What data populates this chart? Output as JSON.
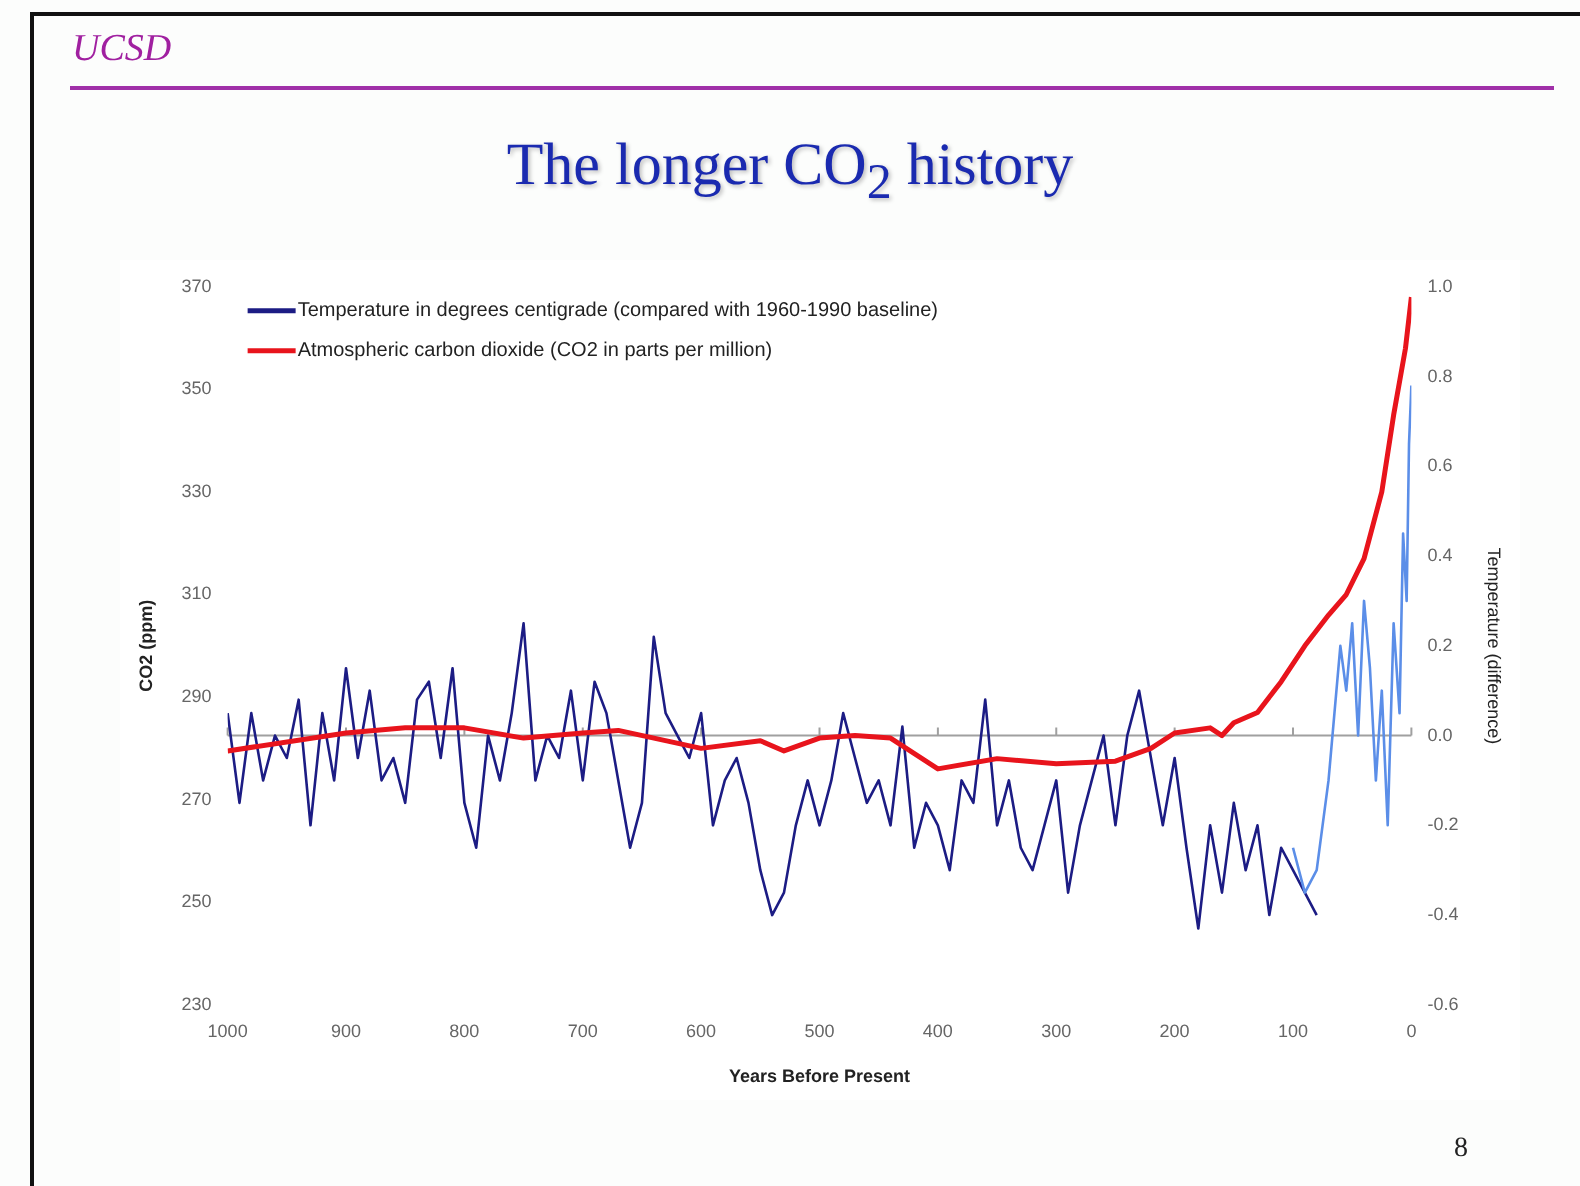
{
  "chart_data": {
    "type": "line",
    "title": "The longer CO$_{2}$ history",
    "xlabel": "Years Before Present",
    "ylabel": "CO2 (ppm)",
    "y2label": "Temperature (difference)",
    "annotations": [
      "UCSD",
      "8"
    ],
    "xlim": [
      1000,
      0
    ],
    "xticks": [
      1000,
      900,
      800,
      700,
      600,
      500,
      400,
      300,
      200,
      100,
      0
    ],
    "ylim": [
      230,
      370
    ],
    "yticks": [
      230,
      250,
      270,
      290,
      310,
      330,
      350,
      370
    ],
    "y2lim": [
      -0.6,
      1.0
    ],
    "y2ticks": [
      -0.6,
      -0.4,
      -0.2,
      {
        "value": 0,
        "label": "0.0"
      },
      0.2,
      0.4,
      0.6,
      0.8,
      {
        "value": 1,
        "label": "1.0"
      }
    ],
    "legend": "top left",
    "grid": false,
    "marker": "none",
    "line_style": "solid",
    "ref_lines": [
      {
        "axis": "y2",
        "value": 0,
        "color": "#a0a0a0"
      }
    ],
    "series": [
      {
        "name": "Temperature in degrees centigrade (compared with 1960-1990 baseline)",
        "color": "#1c1c84",
        "axis": "y2",
        "x": [
          1000,
          990,
          980,
          970,
          960,
          950,
          940,
          930,
          920,
          910,
          900,
          890,
          880,
          870,
          860,
          850,
          840,
          830,
          820,
          810,
          800,
          790,
          780,
          770,
          760,
          750,
          740,
          730,
          720,
          710,
          700,
          690,
          680,
          670,
          660,
          650,
          640,
          630,
          620,
          610,
          600,
          590,
          580,
          570,
          560,
          550,
          540,
          530,
          520,
          510,
          500,
          490,
          480,
          470,
          460,
          450,
          440,
          430,
          420,
          410,
          400,
          390,
          380,
          370,
          360,
          350,
          340,
          330,
          320,
          310,
          300,
          290,
          280,
          270,
          260,
          250,
          240,
          230,
          220,
          210,
          200,
          190,
          180,
          170,
          160,
          150,
          140,
          130,
          120,
          110,
          100,
          90,
          80
        ],
        "values": [
          0.05,
          -0.15,
          0.05,
          -0.1,
          0.0,
          -0.05,
          0.08,
          -0.2,
          0.05,
          -0.1,
          0.15,
          -0.05,
          0.1,
          -0.1,
          -0.05,
          -0.15,
          0.08,
          0.12,
          -0.05,
          0.15,
          -0.15,
          -0.25,
          0.0,
          -0.1,
          0.05,
          0.25,
          -0.1,
          0.0,
          -0.05,
          0.1,
          -0.1,
          0.12,
          0.05,
          -0.1,
          -0.25,
          -0.15,
          0.22,
          0.05,
          0.0,
          -0.05,
          0.05,
          -0.2,
          -0.1,
          -0.05,
          -0.15,
          -0.3,
          -0.4,
          -0.35,
          -0.2,
          -0.1,
          -0.2,
          -0.1,
          0.05,
          -0.05,
          -0.15,
          -0.1,
          -0.2,
          0.02,
          -0.25,
          -0.15,
          -0.2,
          -0.3,
          -0.1,
          -0.15,
          0.08,
          -0.2,
          -0.1,
          -0.25,
          -0.3,
          -0.2,
          -0.1,
          -0.35,
          -0.2,
          -0.1,
          0.0,
          -0.2,
          0.0,
          0.1,
          -0.05,
          -0.2,
          -0.05,
          -0.25,
          -0.43,
          -0.2,
          -0.35,
          -0.15,
          -0.3,
          -0.2,
          -0.4,
          -0.25,
          -0.3,
          -0.35,
          -0.4
        ]
      },
      {
        "color": "#5b8ee8",
        "axis": "y2",
        "x": [
          100,
          90,
          80,
          70,
          65,
          60,
          55,
          50,
          45,
          40,
          35,
          30,
          25,
          20,
          15,
          10,
          7,
          4,
          2,
          0
        ],
        "values": [
          -0.25,
          -0.35,
          -0.3,
          -0.1,
          0.05,
          0.2,
          0.1,
          0.25,
          0.0,
          0.3,
          0.15,
          -0.1,
          0.1,
          -0.2,
          0.25,
          0.05,
          0.45,
          0.3,
          0.65,
          0.78
        ]
      },
      {
        "name": "Atmospheric carbon dioxide (CO2 in parts per million)",
        "color": "#e8141c",
        "x": [
          1000,
          900,
          850,
          800,
          750,
          700,
          670,
          600,
          550,
          530,
          500,
          470,
          440,
          400,
          350,
          300,
          250,
          220,
          200,
          170,
          160,
          150,
          130,
          110,
          90,
          70,
          55,
          40,
          25,
          15,
          5,
          0
        ],
        "values": [
          279.5,
          283,
          284,
          284,
          282,
          283,
          283.5,
          280,
          281.5,
          279.5,
          282,
          282.5,
          282,
          276,
          278,
          277,
          277.5,
          280,
          283,
          284,
          282.5,
          285,
          287,
          293,
          300,
          306,
          310,
          317,
          330,
          345,
          358,
          368
        ]
      }
    ]
  }
}
